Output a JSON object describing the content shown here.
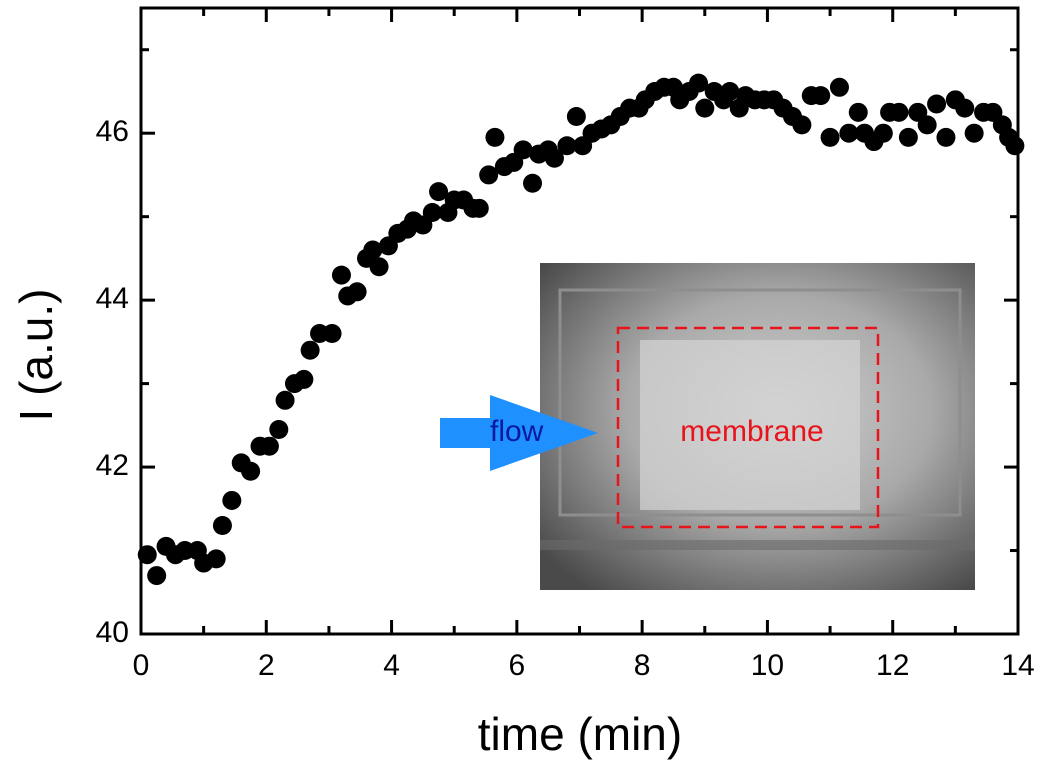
{
  "chart_data": {
    "type": "scatter",
    "x_label": "time (min)",
    "y_label": "I (a.u.)",
    "color": "#000000",
    "x": [
      0.1,
      0.25,
      0.4,
      0.55,
      0.7,
      0.9,
      1.0,
      1.2,
      1.3,
      1.45,
      1.6,
      1.75,
      1.9,
      2.05,
      2.2,
      2.3,
      2.45,
      2.6,
      2.7,
      2.85,
      3.05,
      3.2,
      3.3,
      3.45,
      3.6,
      3.7,
      3.8,
      3.95,
      4.1,
      4.25,
      4.35,
      4.5,
      4.65,
      4.75,
      4.9,
      5.0,
      5.15,
      5.3,
      5.4,
      5.55,
      5.65,
      5.8,
      5.95,
      6.1,
      6.25,
      6.35,
      6.5,
      6.6,
      6.8,
      6.95,
      7.05,
      7.2,
      7.35,
      7.5,
      7.65,
      7.8,
      7.95,
      8.05,
      8.2,
      8.35,
      8.5,
      8.6,
      8.75,
      8.9,
      9.0,
      9.15,
      9.3,
      9.4,
      9.55,
      9.65,
      9.8,
      9.95,
      10.1,
      10.25,
      10.4,
      10.55,
      10.7,
      10.85,
      11.0,
      11.15,
      11.3,
      11.45,
      11.55,
      11.7,
      11.85,
      11.95,
      12.1,
      12.25,
      12.4,
      12.55,
      12.7,
      12.85,
      13.0,
      13.15,
      13.3,
      13.45,
      13.6,
      13.75,
      13.85,
      13.95
    ],
    "values": [
      40.95,
      40.7,
      41.05,
      40.95,
      41.0,
      41.0,
      40.85,
      40.9,
      41.3,
      41.6,
      42.05,
      41.95,
      42.25,
      42.25,
      42.45,
      42.8,
      43.0,
      43.05,
      43.4,
      43.6,
      43.6,
      44.3,
      44.05,
      44.1,
      44.5,
      44.6,
      44.4,
      44.65,
      44.8,
      44.85,
      44.95,
      44.9,
      45.05,
      45.3,
      45.05,
      45.2,
      45.2,
      45.1,
      45.1,
      45.5,
      45.95,
      45.6,
      45.65,
      45.8,
      45.4,
      45.75,
      45.8,
      45.7,
      45.85,
      46.2,
      45.85,
      46.0,
      46.05,
      46.1,
      46.2,
      46.3,
      46.3,
      46.4,
      46.5,
      46.55,
      46.55,
      46.4,
      46.5,
      46.6,
      46.3,
      46.5,
      46.4,
      46.5,
      46.3,
      46.45,
      46.4,
      46.4,
      46.4,
      46.3,
      46.2,
      46.1,
      46.45,
      46.45,
      45.95,
      46.55,
      46.0,
      46.25,
      46.0,
      45.9,
      46.0,
      46.25,
      46.25,
      45.95,
      46.25,
      46.1,
      46.35,
      45.95,
      46.4,
      46.3,
      46.0,
      46.25,
      46.25,
      46.1,
      45.95,
      45.85
    ],
    "xlim": [
      0,
      14
    ],
    "ylim": [
      40,
      47.5
    ],
    "xticks": [
      0,
      2,
      4,
      6,
      8,
      10,
      12,
      14
    ],
    "yticks": [
      40,
      42,
      44,
      46
    ],
    "xminorticks": [
      1,
      3,
      5,
      7,
      9,
      11,
      13
    ],
    "yminorticks": [
      41,
      43,
      45,
      47
    ],
    "annotations": [
      "flow",
      "membrane"
    ]
  }
}
